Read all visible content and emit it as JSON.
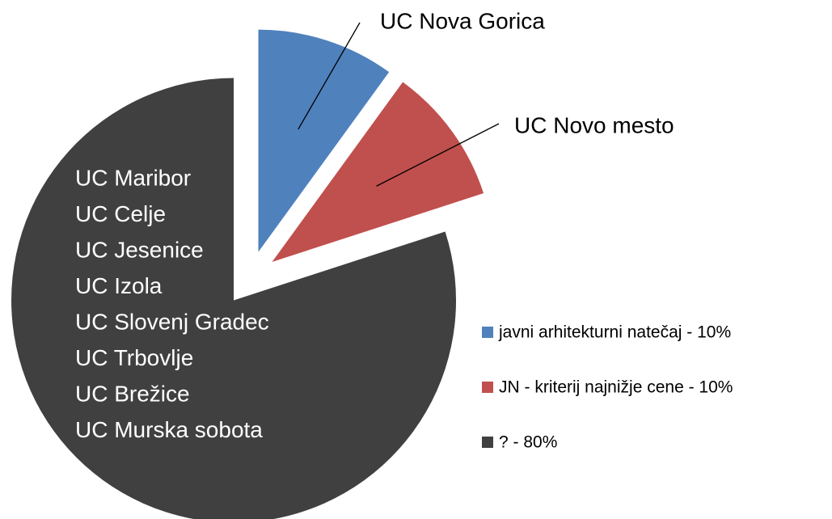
{
  "chart_data": {
    "type": "pie",
    "categories": [
      "javni arhitekturni natečaj - 10%",
      "JN - kriterij najnižje cene - 10%",
      "? - 80%"
    ],
    "values": [
      10,
      10,
      80
    ],
    "colors": [
      "#4f81bd",
      "#c0504d",
      "#404040"
    ],
    "slice_labels": [
      [
        "UC Nova Gorica"
      ],
      [
        "UC Novo mesto"
      ],
      [
        "UC Maribor",
        "UC Celje",
        "UC Jesenice",
        "UC Izola",
        "UC Slovenj Gradec",
        "UC Trbovlje",
        "UC Brežice",
        "UC Murska sobota"
      ]
    ],
    "legend": "right"
  }
}
